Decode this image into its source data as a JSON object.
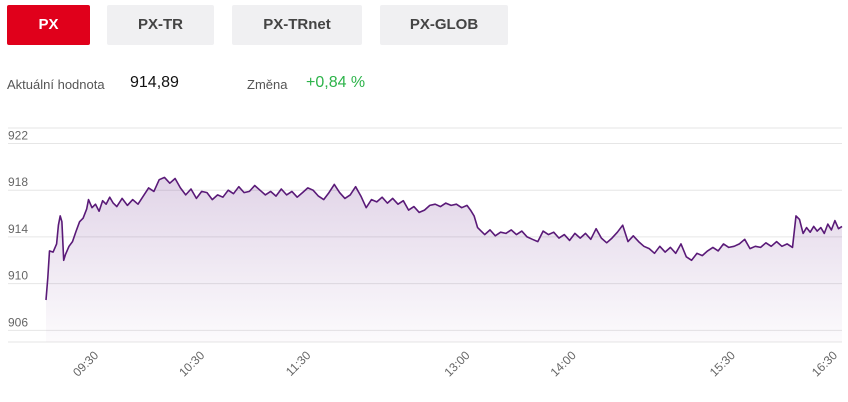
{
  "tabs": [
    {
      "label": "PX",
      "active": true
    },
    {
      "label": "PX-TR",
      "active": false
    },
    {
      "label": "PX-TRnet",
      "active": false
    },
    {
      "label": "PX-GLOB",
      "active": false
    }
  ],
  "stats": {
    "current_label": "Aktuální hodnota",
    "current_value": "914,89",
    "change_label": "Změna",
    "change_value": "+0,84 %"
  },
  "colors": {
    "accent": "#e0001b",
    "line": "#5a1a78",
    "positive": "#2db34a",
    "grid": "#e6e6e6"
  },
  "chart_data": {
    "type": "area",
    "title": "",
    "xlabel": "",
    "ylabel": "",
    "ylim": [
      905,
      923.5
    ],
    "xlim": [
      "09:00",
      "16:30"
    ],
    "y_ticks": [
      906,
      910,
      914,
      918,
      922
    ],
    "y_tick_labels": [
      "906",
      "910",
      "914",
      "918",
      "922"
    ],
    "x_tick_labels": [
      "09:30",
      "10:30",
      "11:30",
      "13:00",
      "14:00",
      "15:30",
      "16:30"
    ],
    "x_tick_times": [
      "09:30",
      "10:30",
      "11:30",
      "13:00",
      "14:00",
      "15:30",
      "16:30"
    ],
    "grid": true,
    "series": [
      {
        "name": "",
        "points": [
          [
            "09:00",
            908.6
          ],
          [
            "09:01",
            910.5
          ],
          [
            "09:02",
            912.8
          ],
          [
            "09:04",
            912.7
          ],
          [
            "09:06",
            913.4
          ],
          [
            "09:07",
            915.0
          ],
          [
            "09:08",
            915.8
          ],
          [
            "09:09",
            915.3
          ],
          [
            "09:10",
            912.0
          ],
          [
            "09:11",
            912.5
          ],
          [
            "09:13",
            913.2
          ],
          [
            "09:15",
            913.6
          ],
          [
            "09:17",
            914.5
          ],
          [
            "09:19",
            915.3
          ],
          [
            "09:21",
            915.6
          ],
          [
            "09:23",
            916.4
          ],
          [
            "09:24",
            917.2
          ],
          [
            "09:26",
            916.5
          ],
          [
            "09:28",
            916.8
          ],
          [
            "09:30",
            916.2
          ],
          [
            "09:32",
            917.1
          ],
          [
            "09:34",
            916.8
          ],
          [
            "09:36",
            917.4
          ],
          [
            "09:38",
            916.9
          ],
          [
            "09:40",
            916.6
          ],
          [
            "09:43",
            917.3
          ],
          [
            "09:46",
            916.7
          ],
          [
            "09:49",
            917.2
          ],
          [
            "09:52",
            916.8
          ],
          [
            "09:55",
            917.5
          ],
          [
            "09:58",
            918.2
          ],
          [
            "10:01",
            917.9
          ],
          [
            "10:04",
            918.9
          ],
          [
            "10:07",
            919.1
          ],
          [
            "10:10",
            918.6
          ],
          [
            "10:13",
            919.0
          ],
          [
            "10:16",
            918.2
          ],
          [
            "10:19",
            917.6
          ],
          [
            "10:22",
            918.1
          ],
          [
            "10:25",
            917.3
          ],
          [
            "10:28",
            917.9
          ],
          [
            "10:31",
            917.8
          ],
          [
            "10:34",
            917.2
          ],
          [
            "10:37",
            917.6
          ],
          [
            "10:40",
            917.4
          ],
          [
            "10:43",
            918.0
          ],
          [
            "10:46",
            917.7
          ],
          [
            "10:49",
            918.3
          ],
          [
            "10:52",
            917.8
          ],
          [
            "10:55",
            917.9
          ],
          [
            "10:58",
            918.4
          ],
          [
            "11:01",
            918.0
          ],
          [
            "11:04",
            917.6
          ],
          [
            "11:07",
            917.9
          ],
          [
            "11:10",
            917.5
          ],
          [
            "11:13",
            918.1
          ],
          [
            "11:16",
            917.6
          ],
          [
            "11:19",
            917.9
          ],
          [
            "11:22",
            917.4
          ],
          [
            "11:25",
            917.8
          ],
          [
            "11:28",
            918.2
          ],
          [
            "11:31",
            918.0
          ],
          [
            "11:34",
            917.5
          ],
          [
            "11:37",
            917.2
          ],
          [
            "11:40",
            917.8
          ],
          [
            "11:43",
            918.5
          ],
          [
            "11:46",
            917.8
          ],
          [
            "11:49",
            917.3
          ],
          [
            "11:52",
            917.6
          ],
          [
            "11:55",
            918.3
          ],
          [
            "11:58",
            917.5
          ],
          [
            "12:01",
            916.5
          ],
          [
            "12:04",
            917.2
          ],
          [
            "12:07",
            917.0
          ],
          [
            "12:10",
            917.4
          ],
          [
            "12:13",
            916.9
          ],
          [
            "12:16",
            917.3
          ],
          [
            "12:19",
            916.8
          ],
          [
            "12:22",
            917.1
          ],
          [
            "12:25",
            916.3
          ],
          [
            "12:28",
            916.6
          ],
          [
            "12:31",
            916.1
          ],
          [
            "12:34",
            916.3
          ],
          [
            "12:37",
            916.7
          ],
          [
            "12:40",
            916.8
          ],
          [
            "12:43",
            916.6
          ],
          [
            "12:46",
            916.9
          ],
          [
            "12:49",
            916.7
          ],
          [
            "12:52",
            916.8
          ],
          [
            "12:55",
            916.5
          ],
          [
            "12:58",
            916.7
          ],
          [
            "13:00",
            916.3
          ],
          [
            "13:02",
            915.8
          ],
          [
            "13:04",
            914.8
          ],
          [
            "13:06",
            914.5
          ],
          [
            "13:08",
            914.2
          ],
          [
            "13:11",
            914.6
          ],
          [
            "13:14",
            914.1
          ],
          [
            "13:17",
            914.4
          ],
          [
            "13:20",
            914.3
          ],
          [
            "13:23",
            914.6
          ],
          [
            "13:26",
            914.2
          ],
          [
            "13:29",
            914.5
          ],
          [
            "13:32",
            914.0
          ],
          [
            "13:35",
            913.8
          ],
          [
            "13:38",
            913.6
          ],
          [
            "13:41",
            914.5
          ],
          [
            "13:44",
            914.2
          ],
          [
            "13:47",
            914.4
          ],
          [
            "13:50",
            913.9
          ],
          [
            "13:53",
            914.2
          ],
          [
            "13:56",
            913.7
          ],
          [
            "13:59",
            914.3
          ],
          [
            "14:02",
            913.9
          ],
          [
            "14:05",
            914.3
          ],
          [
            "14:08",
            913.8
          ],
          [
            "14:11",
            914.7
          ],
          [
            "14:14",
            913.9
          ],
          [
            "14:17",
            913.5
          ],
          [
            "14:20",
            913.9
          ],
          [
            "14:23",
            914.4
          ],
          [
            "14:26",
            915.0
          ],
          [
            "14:29",
            913.6
          ],
          [
            "14:32",
            914.1
          ],
          [
            "14:35",
            913.6
          ],
          [
            "14:38",
            913.2
          ],
          [
            "14:41",
            913.0
          ],
          [
            "14:44",
            912.6
          ],
          [
            "14:47",
            913.2
          ],
          [
            "14:50",
            912.7
          ],
          [
            "14:53",
            913.1
          ],
          [
            "14:56",
            912.6
          ],
          [
            "14:59",
            913.4
          ],
          [
            "15:02",
            912.3
          ],
          [
            "15:05",
            912.0
          ],
          [
            "15:08",
            912.6
          ],
          [
            "15:11",
            912.4
          ],
          [
            "15:14",
            912.8
          ],
          [
            "15:17",
            913.1
          ],
          [
            "15:20",
            912.8
          ],
          [
            "15:23",
            913.4
          ],
          [
            "15:26",
            913.1
          ],
          [
            "15:29",
            913.2
          ],
          [
            "15:32",
            913.4
          ],
          [
            "15:35",
            913.8
          ],
          [
            "15:38",
            913.0
          ],
          [
            "15:41",
            913.2
          ],
          [
            "15:44",
            913.1
          ],
          [
            "15:47",
            913.5
          ],
          [
            "15:50",
            913.2
          ],
          [
            "15:53",
            913.6
          ],
          [
            "15:56",
            913.2
          ],
          [
            "15:59",
            913.4
          ],
          [
            "16:02",
            913.1
          ],
          [
            "16:04",
            915.8
          ],
          [
            "16:06",
            915.5
          ],
          [
            "16:08",
            914.3
          ],
          [
            "16:10",
            914.8
          ],
          [
            "16:12",
            914.4
          ],
          [
            "16:14",
            914.9
          ],
          [
            "16:16",
            914.5
          ],
          [
            "16:18",
            914.8
          ],
          [
            "16:20",
            914.3
          ],
          [
            "16:22",
            915.1
          ],
          [
            "16:24",
            914.6
          ],
          [
            "16:26",
            915.4
          ],
          [
            "16:28",
            914.7
          ],
          [
            "16:30",
            914.9
          ]
        ]
      }
    ]
  }
}
